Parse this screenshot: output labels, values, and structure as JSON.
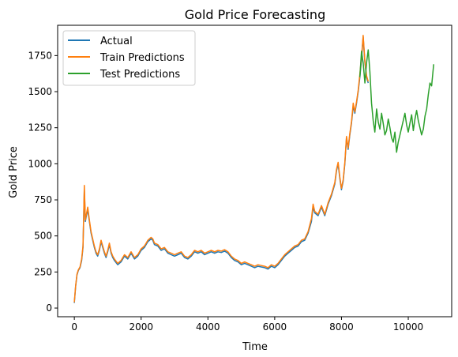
{
  "chart_data": {
    "type": "line",
    "title": "Gold Price Forecasting",
    "xlabel": "Time",
    "ylabel": "Gold Price",
    "xlim": [
      -500,
      11300
    ],
    "ylim": [
      -60,
      1960
    ],
    "xticks": [
      0,
      2000,
      4000,
      6000,
      8000,
      10000
    ],
    "yticks": [
      0,
      250,
      500,
      750,
      1000,
      1250,
      1500,
      1750
    ],
    "legend_position": "upper-left",
    "series": [
      {
        "name": "Actual",
        "color": "#1f77b4",
        "x": [
          0,
          40,
          80,
          120,
          170,
          220,
          260,
          300,
          330,
          360,
          400,
          450,
          500,
          560,
          600,
          650,
          700,
          750,
          800,
          850,
          900,
          950,
          1000,
          1050,
          1100,
          1150,
          1200,
          1300,
          1400,
          1500,
          1600,
          1700,
          1800,
          1900,
          2000,
          2100,
          2200,
          2300,
          2350,
          2400,
          2500,
          2600,
          2700,
          2800,
          2900,
          3000,
          3100,
          3200,
          3300,
          3400,
          3500,
          3600,
          3700,
          3800,
          3900,
          4000,
          4100,
          4200,
          4300,
          4400,
          4500,
          4600,
          4700,
          4800,
          4900,
          5000,
          5100,
          5200,
          5300,
          5400,
          5500,
          5600,
          5700,
          5800,
          5900,
          6000,
          6100,
          6200,
          6300,
          6400,
          6500,
          6600,
          6700,
          6800,
          6900,
          7000,
          7100,
          7150,
          7200,
          7300,
          7400,
          7500,
          7600,
          7700,
          7800,
          7850,
          7900,
          7950,
          8000,
          8050,
          8100,
          8150,
          8200,
          8250,
          8300,
          8350,
          8400,
          8450,
          8500,
          8550,
          8600,
          8650,
          8700,
          8750,
          8800
        ],
        "y": [
          35,
          150,
          230,
          260,
          280,
          330,
          420,
          820,
          600,
          640,
          680,
          600,
          520,
          460,
          420,
          380,
          360,
          400,
          460,
          420,
          380,
          350,
          390,
          440,
          380,
          350,
          330,
          300,
          320,
          360,
          340,
          380,
          340,
          360,
          400,
          420,
          460,
          480,
          470,
          440,
          430,
          400,
          410,
          380,
          370,
          360,
          370,
          380,
          350,
          340,
          360,
          390,
          380,
          390,
          370,
          380,
          390,
          380,
          390,
          385,
          395,
          380,
          350,
          330,
          320,
          300,
          310,
          300,
          290,
          280,
          290,
          285,
          280,
          270,
          290,
          280,
          300,
          330,
          360,
          380,
          400,
          420,
          430,
          460,
          470,
          520,
          600,
          700,
          660,
          640,
          700,
          640,
          720,
          780,
          860,
          950,
          1000,
          900,
          820,
          880,
          1000,
          1180,
          1100,
          1200,
          1280,
          1400,
          1350,
          1420,
          1500,
          1600,
          1720,
          1880,
          1700,
          1600,
          1560
        ],
        "data_labels": []
      },
      {
        "name": "Train Predictions",
        "color": "#ff7f0e",
        "x": [
          0,
          40,
          80,
          120,
          170,
          220,
          260,
          300,
          330,
          360,
          400,
          450,
          500,
          560,
          600,
          650,
          700,
          750,
          800,
          850,
          900,
          950,
          1000,
          1050,
          1100,
          1150,
          1200,
          1300,
          1400,
          1500,
          1600,
          1700,
          1800,
          1900,
          2000,
          2100,
          2200,
          2300,
          2350,
          2400,
          2500,
          2600,
          2700,
          2800,
          2900,
          3000,
          3100,
          3200,
          3300,
          3400,
          3500,
          3600,
          3700,
          3800,
          3900,
          4000,
          4100,
          4200,
          4300,
          4400,
          4500,
          4600,
          4700,
          4800,
          4900,
          5000,
          5100,
          5200,
          5300,
          5400,
          5500,
          5600,
          5700,
          5800,
          5900,
          6000,
          6100,
          6200,
          6300,
          6400,
          6500,
          6600,
          6700,
          6800,
          6900,
          7000,
          7100,
          7150,
          7200,
          7300,
          7400,
          7500,
          7600,
          7700,
          7800,
          7850,
          7900,
          7950,
          8000,
          8050,
          8100,
          8150,
          8200,
          8250,
          8300,
          8350,
          8400,
          8450,
          8500,
          8550,
          8600,
          8650,
          8700,
          8750,
          8800
        ],
        "y": [
          40,
          155,
          235,
          265,
          285,
          340,
          430,
          850,
          610,
          650,
          700,
          610,
          530,
          470,
          430,
          390,
          370,
          410,
          470,
          430,
          390,
          360,
          400,
          450,
          390,
          360,
          340,
          310,
          330,
          370,
          350,
          390,
          350,
          370,
          410,
          430,
          470,
          490,
          480,
          450,
          440,
          410,
          420,
          390,
          380,
          370,
          380,
          390,
          360,
          350,
          370,
          400,
          390,
          400,
          380,
          390,
          400,
          390,
          400,
          395,
          405,
          390,
          360,
          340,
          330,
          310,
          320,
          310,
          300,
          290,
          300,
          295,
          290,
          280,
          300,
          290,
          310,
          340,
          370,
          390,
          410,
          430,
          440,
          470,
          480,
          530,
          620,
          720,
          670,
          650,
          710,
          650,
          730,
          790,
          870,
          960,
          1010,
          910,
          830,
          890,
          1010,
          1190,
          1110,
          1210,
          1290,
          1420,
          1360,
          1430,
          1510,
          1620,
          1740,
          1890,
          1710,
          1610,
          1570
        ],
        "data_labels": []
      },
      {
        "name": "Test Predictions",
        "color": "#2ca02c",
        "x": [
          8550,
          8600,
          8650,
          8700,
          8750,
          8800,
          8850,
          8900,
          8950,
          9000,
          9050,
          9100,
          9150,
          9200,
          9250,
          9300,
          9350,
          9400,
          9450,
          9500,
          9550,
          9600,
          9650,
          9700,
          9750,
          9800,
          9850,
          9900,
          9950,
          10000,
          10050,
          10100,
          10150,
          10200,
          10250,
          10300,
          10350,
          10400,
          10450,
          10500,
          10550,
          10600,
          10650,
          10700,
          10760
        ],
        "y": [
          1600,
          1780,
          1700,
          1560,
          1700,
          1790,
          1640,
          1420,
          1300,
          1220,
          1380,
          1290,
          1240,
          1350,
          1280,
          1200,
          1230,
          1310,
          1250,
          1180,
          1150,
          1220,
          1080,
          1150,
          1200,
          1250,
          1300,
          1350,
          1270,
          1220,
          1280,
          1340,
          1230,
          1310,
          1370,
          1300,
          1250,
          1200,
          1240,
          1330,
          1380,
          1480,
          1560,
          1540,
          1690
        ],
        "data_labels": []
      }
    ]
  }
}
